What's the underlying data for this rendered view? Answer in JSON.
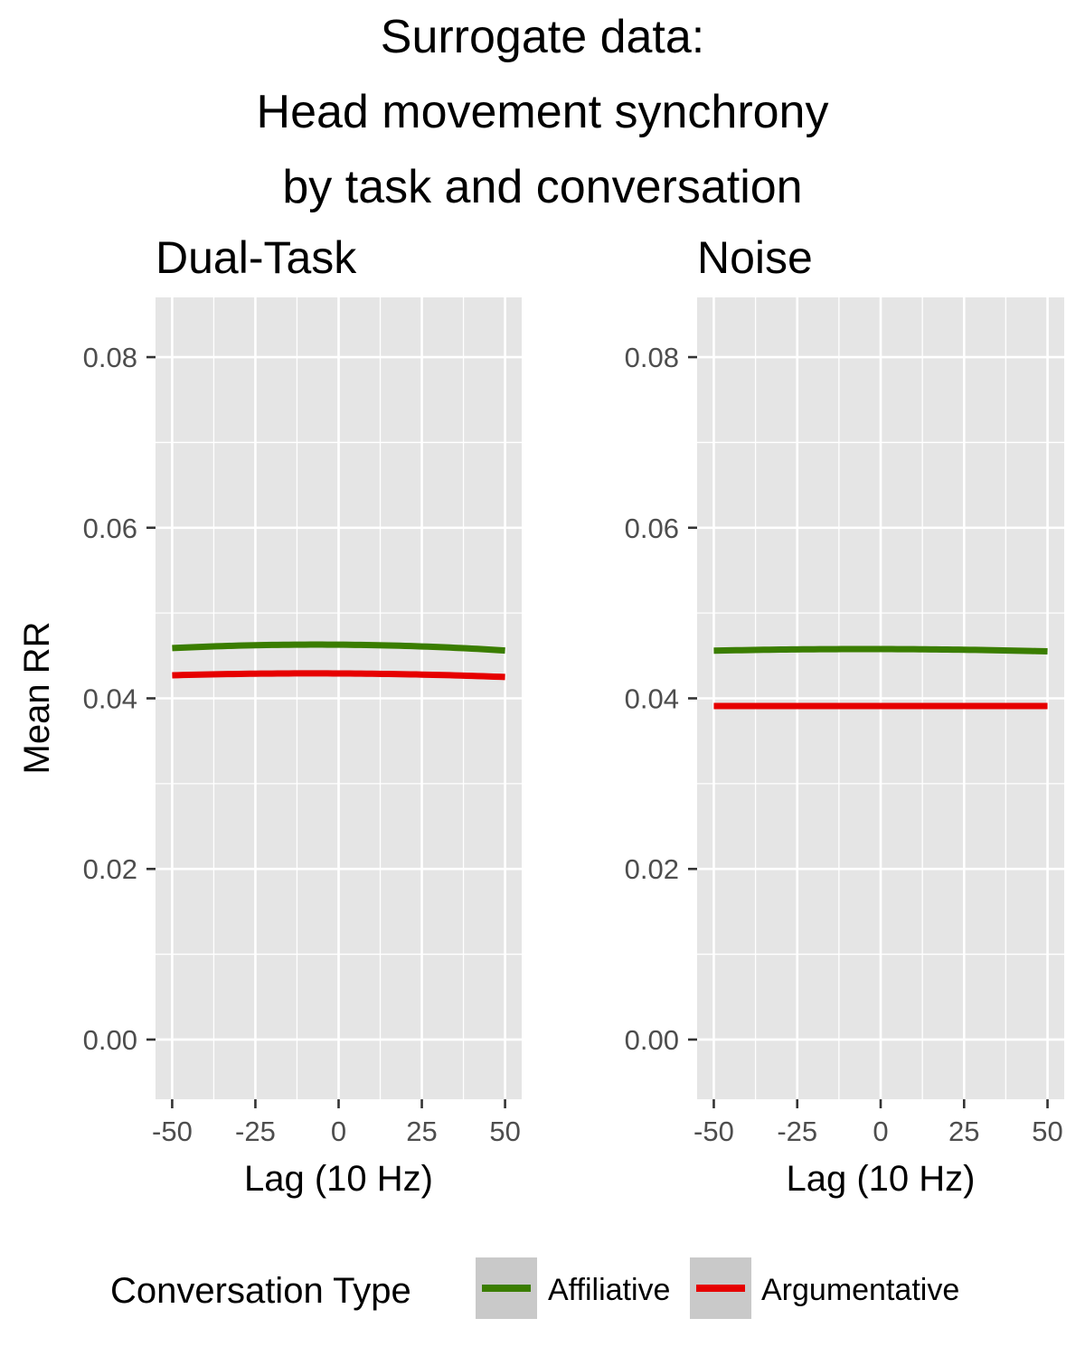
{
  "chart_data": {
    "type": "line",
    "title_lines": [
      "Surrogate data:",
      "Head movement synchrony",
      "by task and conversation"
    ],
    "xlabel": "Lag (10 Hz)",
    "ylabel": "Mean RR",
    "xlim": [
      -55,
      55
    ],
    "ylim": [
      -0.007,
      0.087
    ],
    "x_ticks": [
      -50,
      -25,
      0,
      25,
      50
    ],
    "x_tick_labels": [
      "-50",
      "-25",
      "0",
      "25",
      "50"
    ],
    "y_ticks": [
      0.0,
      0.02,
      0.04,
      0.06,
      0.08
    ],
    "y_tick_labels": [
      "0.00",
      "0.02",
      "0.04",
      "0.06",
      "0.08"
    ],
    "grid": true,
    "legend": {
      "title": "Conversation Type",
      "position": "bottom",
      "entries": [
        "Affiliative",
        "Argumentative"
      ]
    },
    "colors": {
      "Affiliative": "#3a7d00",
      "Argumentative": "#e60000",
      "panel_bg": "#e5e5e5",
      "grid": "#ffffff"
    },
    "panels": [
      {
        "label": "Dual-Task",
        "x": [
          -50,
          -25,
          0,
          25,
          50
        ],
        "series": [
          {
            "name": "Affiliative",
            "values": [
              0.0459,
              0.0462,
              0.0463,
              0.0461,
              0.0456
            ]
          },
          {
            "name": "Argumentative",
            "values": [
              0.0427,
              0.0429,
              0.0429,
              0.0428,
              0.0425
            ]
          }
        ]
      },
      {
        "label": "Noise",
        "x": [
          -50,
          -25,
          0,
          25,
          50
        ],
        "series": [
          {
            "name": "Affiliative",
            "values": [
              0.0456,
              0.0457,
              0.0458,
              0.0457,
              0.0455
            ]
          },
          {
            "name": "Argumentative",
            "values": [
              0.0391,
              0.0391,
              0.0391,
              0.0391,
              0.0391
            ]
          }
        ]
      }
    ]
  }
}
